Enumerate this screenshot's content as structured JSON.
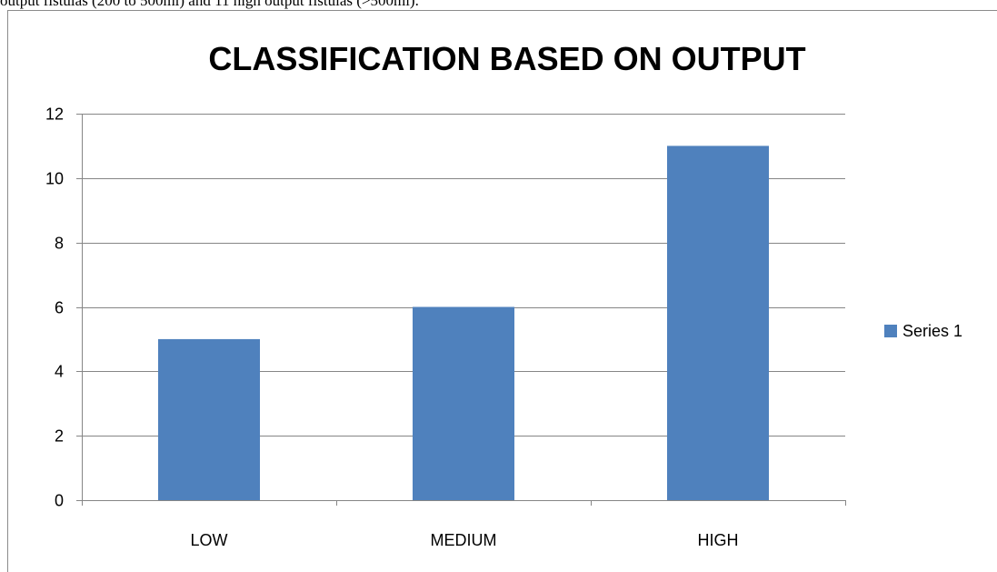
{
  "document": {
    "partial_text": "output fistulas (200 to 500ml) and 11 high output fistulas (>500ml)."
  },
  "colors": {
    "bar": "#4f81bd",
    "grid": "#868686",
    "axis": "#868686",
    "frame": "#8c8c8c"
  },
  "chart_data": {
    "type": "bar",
    "title": "CLASSIFICATION BASED ON OUTPUT",
    "categories": [
      "LOW",
      "MEDIUM",
      "HIGH"
    ],
    "series": [
      {
        "name": "Series 1",
        "values": [
          5,
          6,
          11
        ]
      }
    ],
    "ylim": [
      0,
      12
    ],
    "yticks": [
      0,
      2,
      4,
      6,
      8,
      10,
      12
    ],
    "grid": true,
    "legend_position": "right"
  }
}
